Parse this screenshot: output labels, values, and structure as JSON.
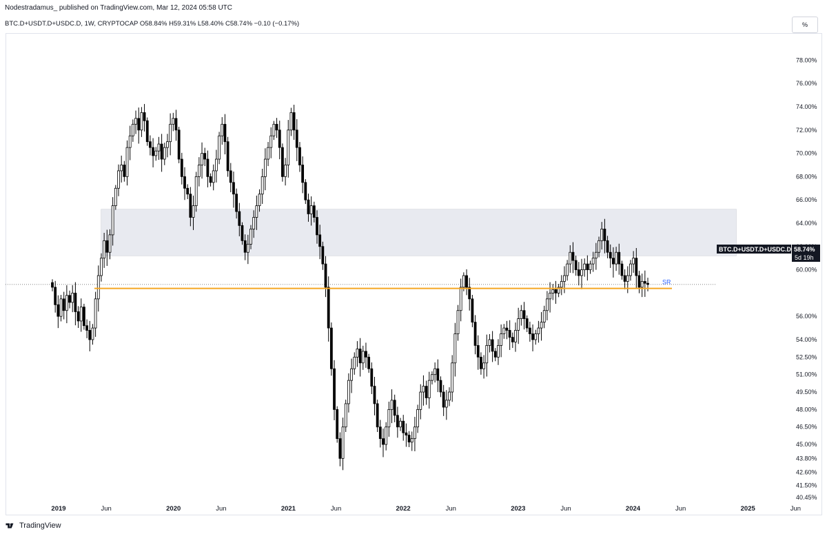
{
  "header": {
    "publisher_line": "Nodestradamus_ published on TradingView.com, Mar 12, 2024 05:58 UTC",
    "legend_line": "BTC.D+USDT.D+USDC.D, 1W, CRYPTOCAP  O58.84%  H59.31%  L58.40%  C58.74%  −0.10 (−0.17%)",
    "scale_button": "%"
  },
  "footer": {
    "brand": "TradingView"
  },
  "price_tag": {
    "symbol": "BTC.D+USDT.D+USDC.D",
    "value": "58.74%",
    "countdown": "5d 19h"
  },
  "colors": {
    "candle_up": "#ffffff",
    "candle_down": "#000000",
    "outline": "#000000",
    "support_line": "#f5a623",
    "zone_fill": "#e0e3eb",
    "sr_label": "#2962ff",
    "price_tag_bg": "#131722"
  },
  "chart_data": {
    "type": "candlestick",
    "timeframe": "1W",
    "ylim": [
      40.45,
      79.5
    ],
    "y_ticks": [
      "78.00%",
      "76.00%",
      "74.00%",
      "72.00%",
      "70.00%",
      "68.00%",
      "66.00%",
      "64.00%",
      "62.00%",
      "60.00%",
      "56.00%",
      "54.00%",
      "52.50%",
      "51.00%",
      "49.50%",
      "48.00%",
      "46.50%",
      "45.00%",
      "43.80%",
      "42.60%",
      "41.50%",
      "40.45%"
    ],
    "x_ticks": [
      "2019",
      "Jun",
      "2020",
      "Jun",
      "2021",
      "Jun",
      "2022",
      "Jun",
      "2023",
      "Jun",
      "2024",
      "Jun",
      "2025",
      "Jun"
    ],
    "support_level": {
      "label": "SR",
      "value": 58.4
    },
    "resistance_zone": {
      "from": 61.2,
      "to": 65.2,
      "start": "2019-05",
      "end": "2024-12"
    },
    "last_close": 58.74,
    "closes": [
      58.5,
      57.0,
      56.0,
      57.5,
      56.5,
      57.8,
      57.2,
      58.0,
      56.4,
      55.6,
      56.8,
      55.2,
      54.8,
      54.0,
      55.0,
      57.5,
      59.5,
      61.0,
      62.5,
      61.5,
      63.0,
      65.5,
      67.0,
      68.5,
      69.0,
      68.0,
      70.5,
      71.5,
      72.5,
      73.0,
      72.0,
      73.5,
      72.8,
      71.0,
      70.5,
      69.8,
      70.2,
      70.8,
      69.5,
      70.5,
      71.0,
      72.5,
      73.0,
      72.0,
      69.5,
      68.0,
      67.0,
      66.5,
      64.5,
      65.5,
      68.0,
      69.0,
      70.0,
      69.5,
      68.0,
      67.5,
      68.5,
      69.5,
      71.5,
      72.5,
      71.0,
      68.5,
      67.5,
      66.5,
      65.0,
      63.8,
      62.5,
      61.5,
      62.2,
      63.5,
      64.5,
      65.5,
      66.5,
      68.0,
      69.5,
      70.5,
      71.5,
      72.5,
      72.0,
      70.5,
      68.0,
      69.0,
      72.0,
      73.5,
      72.0,
      70.5,
      69.0,
      67.5,
      66.0,
      64.8,
      65.5,
      64.5,
      63.0,
      62.0,
      60.5,
      58.5,
      55.0,
      51.5,
      48.0,
      45.5,
      43.8,
      46.5,
      48.5,
      50.5,
      51.5,
      52.5,
      53.2,
      52.0,
      53.0,
      52.5,
      51.5,
      50.0,
      48.5,
      46.5,
      45.5,
      45.0,
      46.5,
      48.0,
      48.8,
      47.5,
      46.5,
      47.0,
      46.0,
      45.8,
      45.2,
      45.5,
      46.5,
      48.0,
      49.5,
      50.0,
      49.0,
      50.5,
      51.0,
      51.5,
      50.5,
      49.5,
      48.2,
      48.8,
      49.5,
      52.0,
      54.5,
      56.5,
      58.5,
      59.5,
      58.5,
      57.5,
      55.5,
      53.5,
      52.5,
      51.5,
      52.0,
      53.5,
      54.0,
      53.0,
      52.5,
      53.5,
      54.5,
      55.0,
      54.8,
      54.2,
      53.8,
      54.8,
      55.8,
      56.5,
      55.8,
      55.0,
      54.5,
      54.0,
      54.5,
      55.0,
      55.5,
      56.5,
      57.5,
      58.0,
      58.3,
      58.0,
      58.5,
      59.0,
      59.5,
      60.5,
      61.5,
      60.8,
      60.0,
      59.5,
      60.0,
      60.5,
      60.0,
      60.5,
      61.0,
      61.5,
      62.5,
      63.5,
      62.5,
      61.5,
      61.0,
      60.5,
      61.5,
      60.5,
      59.5,
      59.0,
      59.5,
      60.5,
      61.0,
      59.5,
      58.5,
      59.0,
      58.84,
      58.74
    ]
  }
}
